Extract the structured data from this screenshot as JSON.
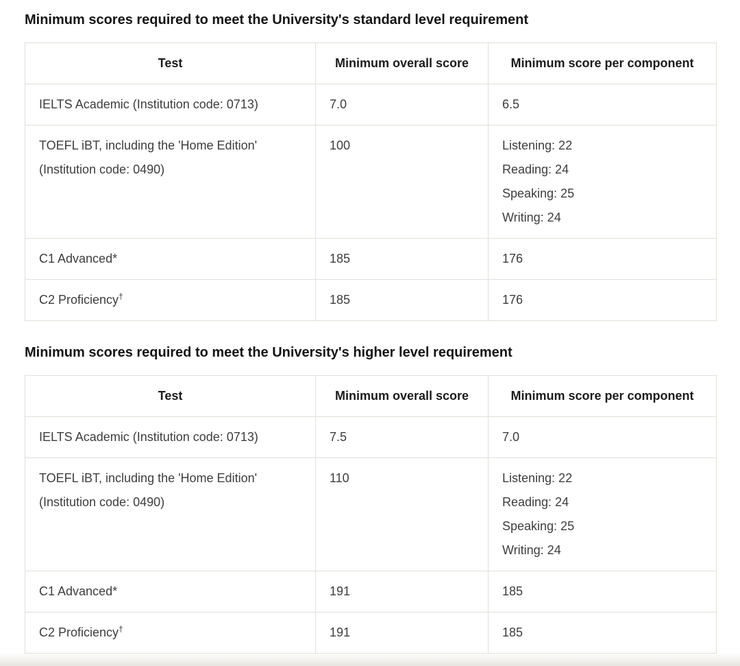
{
  "colors": {
    "table_border": "#e2dfd7",
    "heading_text": "#141414",
    "body_text": "#3d3d3d",
    "cell_background": "#ffffff",
    "bottom_fade": "#e8e6e0"
  },
  "sections": [
    {
      "heading": "Minimum scores required to meet the University's standard level requirement",
      "headers": [
        "Test",
        "Minimum overall score",
        "Minimum score per component"
      ],
      "rows": [
        {
          "test_lines": [
            "IELTS Academic (Institution code: 0713)"
          ],
          "test_sup": "",
          "overall": "7.0",
          "component_lines": [
            "6.5"
          ]
        },
        {
          "test_lines": [
            "TOEFL iBT, including the 'Home Edition'",
            "(Institution code: 0490)"
          ],
          "test_sup": "",
          "overall": "100",
          "component_lines": [
            "Listening: 22",
            "Reading: 24",
            "Speaking: 25",
            "Writing: 24"
          ]
        },
        {
          "test_lines": [
            "C1 Advanced*"
          ],
          "test_sup": "",
          "overall": "185",
          "component_lines": [
            "176"
          ]
        },
        {
          "test_lines": [
            "C2 Proficiency"
          ],
          "test_sup": "†",
          "overall": "185",
          "component_lines": [
            "176"
          ]
        }
      ]
    },
    {
      "heading": "Minimum scores required to meet the University's higher level requirement",
      "headers": [
        "Test",
        "Minimum overall score",
        "Minimum score per component"
      ],
      "rows": [
        {
          "test_lines": [
            "IELTS Academic (Institution code: 0713)"
          ],
          "test_sup": "",
          "overall": "7.5",
          "component_lines": [
            "7.0"
          ]
        },
        {
          "test_lines": [
            "TOEFL iBT, including the 'Home Edition'",
            "(Institution code: 0490)"
          ],
          "test_sup": "",
          "overall": "110",
          "component_lines": [
            "Listening: 22",
            "Reading: 24",
            "Speaking: 25",
            "Writing: 24"
          ]
        },
        {
          "test_lines": [
            "C1 Advanced*"
          ],
          "test_sup": "",
          "overall": "191",
          "component_lines": [
            "185"
          ]
        },
        {
          "test_lines": [
            "C2 Proficiency"
          ],
          "test_sup": "†",
          "overall": "191",
          "component_lines": [
            "185"
          ]
        }
      ]
    }
  ]
}
